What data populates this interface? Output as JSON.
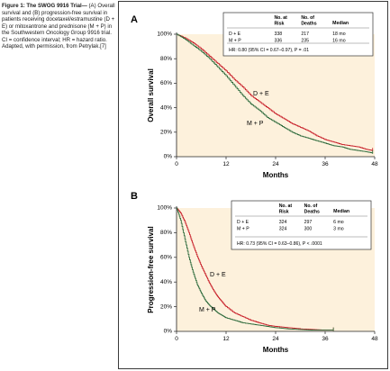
{
  "caption": {
    "heading": "Figure 1: The SWOG 9916 Trial—",
    "body": "(A) Overall survival and (B) progression-free survival in patients receiving docetaxel/estramustine (D + E) or mitoxantrone and prednisone (M + P) in the Southwestern Oncology Group 9916 trial. CI = confidence interval; HR = hazard ratio. Adapted, with permission, from Petrylak.",
    "ref": "[7]"
  },
  "colors": {
    "de": "#c8202a",
    "mp": "#2e6b3c",
    "plot_bg": "#fdf1dc",
    "table_bg": "#ffffff"
  },
  "chart_data": [
    {
      "type": "line",
      "panel_label": "A",
      "xlabel": "Months",
      "ylabel": "Overall survival",
      "xlim": [
        0,
        48
      ],
      "ylim": [
        0,
        100
      ],
      "xticks": [
        0,
        12,
        24,
        36,
        48
      ],
      "yticks": [
        "0%",
        "20%",
        "40%",
        "60%",
        "80%",
        "100%"
      ],
      "series": [
        {
          "name": "D + E",
          "x": [
            0,
            2,
            4,
            6,
            8,
            10,
            12,
            14,
            16,
            18,
            20,
            22,
            24,
            26,
            28,
            30,
            32,
            34,
            36,
            38,
            40,
            42,
            44,
            46,
            47.5
          ],
          "y": [
            100,
            97,
            93,
            88,
            82,
            76,
            70,
            63,
            57,
            50,
            45,
            40,
            35,
            31,
            27,
            24,
            21,
            17,
            14,
            12,
            10,
            9,
            8,
            6,
            5
          ]
        },
        {
          "name": "M + P",
          "x": [
            0,
            2,
            4,
            6,
            8,
            10,
            12,
            14,
            16,
            18,
            20,
            22,
            24,
            26,
            28,
            30,
            32,
            34,
            36,
            38,
            40,
            42,
            44,
            46,
            47.5
          ],
          "y": [
            100,
            96,
            91,
            86,
            80,
            73,
            66,
            58,
            50,
            43,
            38,
            32,
            28,
            24,
            20,
            17,
            15,
            13,
            11,
            9,
            8,
            6,
            5,
            4,
            3
          ]
        }
      ],
      "series_labels": [
        "D + E",
        "M + P"
      ],
      "table": {
        "headers": [
          "",
          "No. at Risk",
          "No. of Deaths",
          "Median"
        ],
        "rows": [
          [
            "D + E",
            "338",
            "217",
            "18 mo"
          ],
          [
            "M + P",
            "336",
            "235",
            "16 mo"
          ]
        ],
        "hr": "HR: 0.80 (95% CI = 0.67–0.97), P = .01"
      }
    },
    {
      "type": "line",
      "panel_label": "B",
      "xlabel": "Months",
      "ylabel": "Progression-free survival",
      "xlim": [
        0,
        48
      ],
      "ylim": [
        0,
        100
      ],
      "xticks": [
        0,
        12,
        24,
        36,
        48
      ],
      "yticks": [
        "0%",
        "20%",
        "40%",
        "60%",
        "80%",
        "100%"
      ],
      "series": [
        {
          "name": "D + E",
          "x": [
            0,
            1,
            2,
            3,
            4,
            5,
            6,
            7,
            8,
            9,
            10,
            11,
            12,
            14,
            16,
            18,
            20,
            22,
            24,
            27,
            30,
            33,
            36,
            38
          ],
          "y": [
            100,
            96,
            89,
            80,
            70,
            61,
            53,
            46,
            39,
            33,
            28,
            24,
            20,
            15,
            12,
            9,
            7,
            5,
            4,
            3,
            2,
            1.5,
            1,
            1
          ]
        },
        {
          "name": "M + P",
          "x": [
            0,
            1,
            2,
            3,
            4,
            5,
            6,
            7,
            8,
            9,
            10,
            11,
            12,
            14,
            16,
            18,
            20,
            22,
            24,
            27,
            30,
            33,
            36,
            38
          ],
          "y": [
            100,
            90,
            75,
            60,
            48,
            38,
            31,
            25,
            21,
            18,
            15,
            13,
            11,
            9,
            7,
            6,
            5,
            4,
            3,
            2,
            1.5,
            1,
            1,
            1
          ]
        }
      ],
      "series_labels": [
        "D + E",
        "M + P"
      ],
      "table": {
        "headers": [
          "",
          "No. at Risk",
          "No. of Deaths",
          "Median"
        ],
        "rows": [
          [
            "D + E",
            "324",
            "297",
            "6 mo"
          ],
          [
            "M + P",
            "324",
            "300",
            "3 mo"
          ]
        ],
        "hr": "HR: 0.73 (95% CI = 0.63–0.86), P < .0001"
      }
    }
  ]
}
